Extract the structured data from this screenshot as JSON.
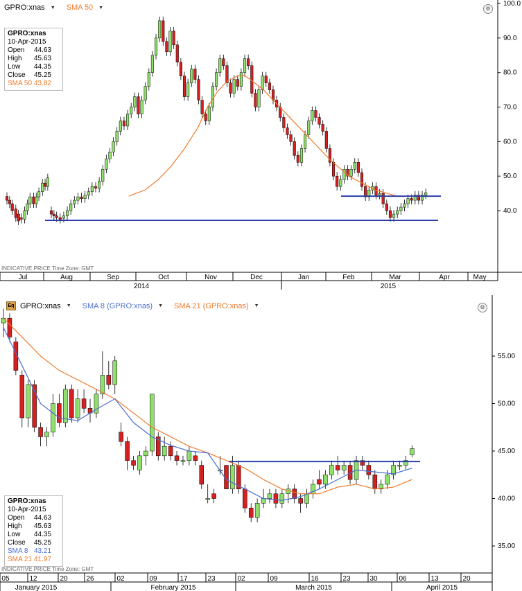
{
  "top": {
    "symbol": "GPRO:xnas",
    "indicator": "SMA 50",
    "info": {
      "title": "GPRO:xnas",
      "date": "10-Apr-2015",
      "rows": [
        {
          "label": "Open",
          "value": "44.63",
          "color": "#000000"
        },
        {
          "label": "High",
          "value": "45.63",
          "color": "#000000"
        },
        {
          "label": "Low",
          "value": "44.35",
          "color": "#000000"
        },
        {
          "label": "Close",
          "value": "45.25",
          "color": "#000000"
        },
        {
          "label": "SMA 50",
          "value": "43.82",
          "color": "#f07a2a"
        }
      ]
    },
    "footer": "INDICATIVE PRICE   Time Zone: GMT",
    "y_ticks": [
      "100.0",
      "90.0",
      "80.0",
      "70.0",
      "60.0",
      "50.0",
      "40.0"
    ],
    "months": [
      "Jul",
      "Aug",
      "Sep",
      "Oct",
      "Nov",
      "Dec",
      "Jan",
      "Feb",
      "Mar",
      "Apr",
      "May"
    ],
    "years": [
      "2014",
      "2015"
    ]
  },
  "bottom": {
    "symbol": "GPRO:xnas",
    "indicators": [
      {
        "label": "SMA 8 (GPRO:xnas)",
        "color": "#4a6ed0"
      },
      {
        "label": "SMA 21 (GPRO:xnas)",
        "color": "#f07a2a"
      }
    ],
    "info": {
      "title": "GPRO:xnas",
      "date": "10-Apr-2015",
      "rows": [
        {
          "label": "Open",
          "value": "44.63",
          "color": "#000000"
        },
        {
          "label": "High",
          "value": "45.63",
          "color": "#000000"
        },
        {
          "label": "Low",
          "value": "44.35",
          "color": "#000000"
        },
        {
          "label": "Close",
          "value": "45.25",
          "color": "#000000"
        },
        {
          "label": "SMA 8",
          "value": "43.21",
          "color": "#4a6ed0"
        },
        {
          "label": "SMA 21",
          "value": "41.97",
          "color": "#f07a2a"
        }
      ]
    },
    "footer": "INDICATIVE PRICE   Time Zone: GMT",
    "y_ticks": [
      "55.00",
      "50.00",
      "45.00",
      "40.00",
      "35.00"
    ],
    "days": [
      "05",
      "12",
      "20",
      "26",
      "02",
      "09",
      "17",
      "23",
      "02",
      "09",
      "16",
      "23",
      "30",
      "06",
      "13",
      "20"
    ],
    "months": [
      "January 2015",
      "February 2015",
      "March 2015",
      "April 2015"
    ]
  },
  "chart_data": [
    {
      "type": "candlestick",
      "title": "GPRO:xnas",
      "indicator": "SMA 50",
      "ylim": [
        32,
        101
      ],
      "x_range": [
        "2014-07",
        "2015-05"
      ],
      "horizontal_lines": [
        44.2,
        37.2
      ],
      "sma50": [
        [
          43,
          44.2
        ],
        [
          48,
          46
        ],
        [
          52,
          49
        ],
        [
          56,
          53
        ],
        [
          60,
          58
        ],
        [
          64,
          64
        ],
        [
          67,
          70
        ],
        [
          70,
          74.5
        ],
        [
          73,
          77.5
        ],
        [
          76,
          79
        ],
        [
          78,
          79.2
        ],
        [
          80,
          78
        ],
        [
          84,
          75
        ],
        [
          88,
          71
        ],
        [
          92,
          67
        ],
        [
          96,
          63
        ],
        [
          100,
          59
        ],
        [
          104,
          55
        ],
        [
          110,
          50
        ],
        [
          118,
          46
        ],
        [
          125,
          44.1
        ],
        [
          132,
          44.2
        ]
      ],
      "candles": [
        [
          2.2,
          44.1,
          43
        ],
        [
          2.5,
          43,
          42
        ],
        [
          2.8,
          42,
          40
        ],
        [
          3.2,
          40.5,
          38
        ],
        [
          3.5,
          39,
          37
        ],
        [
          3.8,
          38,
          37.5
        ],
        [
          4.2,
          37.5,
          40
        ],
        [
          4.5,
          40,
          42
        ],
        [
          4.8,
          42,
          44
        ],
        [
          5.2,
          44,
          42
        ],
        [
          5.5,
          42,
          44
        ],
        [
          5.8,
          44,
          45.5
        ],
        [
          6.2,
          45.5,
          48
        ],
        [
          6.5,
          48,
          47
        ],
        [
          6.8,
          47,
          49.5
        ],
        [
          7.2,
          40,
          39
        ],
        [
          7.5,
          39,
          38.5
        ],
        [
          7.8,
          38.5,
          38
        ],
        [
          8.2,
          38,
          37.5
        ],
        [
          8.6,
          37.8,
          38.5
        ],
        [
          9,
          38.5,
          40
        ],
        [
          9.4,
          40,
          42
        ],
        [
          9.8,
          42,
          43
        ],
        [
          10.2,
          43,
          44
        ],
        [
          10.6,
          44,
          43.5
        ],
        [
          11,
          43.5,
          44.5
        ],
        [
          11.4,
          44.5,
          45.5
        ],
        [
          11.8,
          45.5,
          47
        ],
        [
          12.2,
          47,
          46.5
        ],
        [
          12.6,
          46.5,
          48.5
        ],
        [
          13,
          48.5,
          52
        ],
        [
          13.4,
          52,
          55
        ],
        [
          13.8,
          55,
          57
        ],
        [
          14.2,
          57,
          60
        ],
        [
          14.6,
          60,
          63
        ],
        [
          15,
          63,
          66
        ],
        [
          15.4,
          66,
          64.5
        ],
        [
          15.8,
          64.5,
          68
        ],
        [
          16.2,
          68,
          70
        ],
        [
          16.6,
          70,
          73
        ],
        [
          17,
          73,
          68
        ],
        [
          17.4,
          68,
          72
        ],
        [
          17.8,
          72,
          76
        ],
        [
          18.2,
          76,
          80
        ],
        [
          18.6,
          80,
          85
        ],
        [
          19,
          85,
          90
        ],
        [
          19.4,
          90,
          95
        ],
        [
          19.8,
          95,
          89
        ],
        [
          20.2,
          89,
          86
        ],
        [
          20.6,
          86,
          92
        ],
        [
          21,
          92,
          88
        ],
        [
          21.4,
          88,
          83
        ],
        [
          21.8,
          83,
          79
        ],
        [
          22.2,
          79,
          73
        ],
        [
          22.6,
          73,
          77
        ],
        [
          23,
          77,
          81
        ],
        [
          23.4,
          81,
          78
        ],
        [
          23.8,
          78,
          72
        ],
        [
          24.2,
          72,
          68
        ],
        [
          24.6,
          68,
          66
        ],
        [
          25,
          66,
          70
        ],
        [
          25.4,
          70,
          76
        ],
        [
          25.8,
          76,
          80
        ],
        [
          26.2,
          80,
          84
        ],
        [
          26.6,
          84,
          82
        ],
        [
          27,
          82,
          77
        ],
        [
          27.4,
          77,
          74
        ],
        [
          27.8,
          74,
          78
        ],
        [
          28.2,
          78,
          76
        ],
        [
          28.6,
          76,
          80
        ],
        [
          29,
          80,
          84
        ],
        [
          29.4,
          84,
          82
        ],
        [
          29.8,
          82,
          74
        ],
        [
          30.2,
          74,
          70
        ],
        [
          30.6,
          70,
          75
        ],
        [
          31,
          75,
          79
        ],
        [
          31.4,
          79,
          77
        ],
        [
          31.8,
          77,
          75
        ],
        [
          32.2,
          75,
          72
        ],
        [
          32.6,
          72,
          70
        ],
        [
          33,
          70,
          67
        ],
        [
          33.4,
          67,
          64
        ],
        [
          33.8,
          64,
          62
        ],
        [
          34.2,
          62,
          60
        ],
        [
          34.6,
          60,
          56
        ],
        [
          35,
          56,
          54
        ],
        [
          35.4,
          54,
          58
        ],
        [
          35.8,
          58,
          62
        ],
        [
          36.2,
          62,
          66
        ],
        [
          36.6,
          66,
          69
        ],
        [
          37,
          69,
          67
        ],
        [
          37.4,
          67,
          65
        ],
        [
          37.8,
          65,
          63
        ],
        [
          38.2,
          63,
          58
        ],
        [
          38.6,
          58,
          54
        ],
        [
          39,
          54,
          50
        ],
        [
          39.4,
          50,
          47
        ],
        [
          39.8,
          47,
          49
        ],
        [
          40.2,
          49,
          52
        ],
        [
          40.6,
          52,
          50
        ],
        [
          41,
          50,
          52
        ],
        [
          41.4,
          52,
          54
        ],
        [
          41.8,
          54,
          51
        ],
        [
          42.2,
          51,
          47
        ],
        [
          42.6,
          47,
          44
        ],
        [
          43,
          44,
          46
        ],
        [
          43.4,
          46,
          47
        ],
        [
          43.8,
          47,
          44.5
        ],
        [
          44.2,
          44.5,
          45
        ],
        [
          44.6,
          45,
          42
        ],
        [
          45,
          42,
          40
        ],
        [
          45.4,
          40,
          38
        ],
        [
          45.8,
          38,
          39
        ],
        [
          46.2,
          39,
          40
        ],
        [
          46.6,
          40,
          41
        ],
        [
          47,
          41,
          42
        ],
        [
          47.4,
          42,
          43.5
        ],
        [
          47.8,
          43.5,
          43
        ],
        [
          48.2,
          43,
          44.5
        ],
        [
          48.6,
          44.5,
          43
        ],
        [
          49,
          43,
          44.5
        ],
        [
          49.4,
          44.5,
          45.2
        ]
      ]
    },
    {
      "type": "candlestick",
      "title": "GPRO:xnas",
      "indicators": [
        "SMA 8 (GPRO:xnas)",
        "SMA 21 (GPRO:xnas)"
      ],
      "ylim": [
        34,
        59.5
      ],
      "horizontal_line": 43.9,
      "candles_ohlc": [
        [
          58.5,
          60,
          57,
          59
        ],
        [
          59,
          59.5,
          56.5,
          57
        ],
        [
          56.5,
          57,
          53,
          53.5
        ],
        [
          53,
          53.5,
          47.5,
          48.5
        ],
        [
          48.5,
          52.5,
          47.5,
          52
        ],
        [
          52,
          52.5,
          47,
          47.5
        ],
        [
          47.5,
          48,
          45.5,
          46.5
        ],
        [
          46.5,
          47.5,
          45.5,
          47
        ],
        [
          47,
          51,
          46.5,
          50
        ],
        [
          50,
          51,
          47.5,
          48
        ],
        [
          48,
          52,
          47.5,
          51.5
        ],
        [
          51.5,
          52,
          48,
          48.5
        ],
        [
          48.5,
          51.5,
          48,
          50.5
        ],
        [
          50.5,
          51.5,
          49,
          49.5
        ],
        [
          49.5,
          50.5,
          48,
          49
        ],
        [
          49,
          51.5,
          48.5,
          51
        ],
        [
          51,
          55.5,
          50.5,
          53
        ],
        [
          53,
          54.5,
          51.5,
          52
        ],
        [
          52,
          55,
          51,
          54.5
        ],
        [
          47,
          48,
          45.5,
          46
        ],
        [
          46,
          46.5,
          43,
          44
        ],
        [
          44,
          44.5,
          43,
          43.5
        ],
        [
          43,
          45,
          42.5,
          44.5
        ],
        [
          44.5,
          45.5,
          43.5,
          45
        ],
        [
          45,
          51,
          44.5,
          51
        ],
        [
          46.5,
          47,
          44,
          44.5
        ],
        [
          44.5,
          46.5,
          44,
          45.5
        ],
        [
          45.5,
          46,
          44,
          44.5
        ],
        [
          44.5,
          45,
          43.5,
          44
        ],
        [
          44,
          44.5,
          43.5,
          44
        ],
        [
          44,
          45.5,
          43.5,
          45
        ],
        [
          44.5,
          45,
          43.5,
          44
        ],
        [
          43.5,
          44,
          41,
          41.5
        ],
        [
          40,
          41.5,
          39.5,
          40
        ],
        [
          40.5,
          41,
          39.5,
          40
        ],
        [
          43,
          44.5,
          42.5,
          43
        ],
        [
          43.5,
          43.5,
          41,
          41
        ],
        [
          41,
          44.5,
          40.5,
          43.5
        ],
        [
          43.5,
          44,
          40.5,
          41
        ],
        [
          41,
          41.5,
          38.5,
          39
        ],
        [
          39,
          39.5,
          37.5,
          38
        ],
        [
          38,
          40,
          37.5,
          39.5
        ],
        [
          39.5,
          41,
          39,
          40
        ],
        [
          40,
          41,
          39.5,
          40.5
        ],
        [
          40.5,
          41,
          39,
          39.5
        ],
        [
          39.5,
          41,
          39,
          40.5
        ],
        [
          40.5,
          41.5,
          39.5,
          41
        ],
        [
          41,
          41.5,
          39.5,
          40
        ],
        [
          40,
          40.5,
          38.5,
          39.5
        ],
        [
          39.5,
          41,
          39,
          40.5
        ],
        [
          40.5,
          42,
          40,
          41.5
        ],
        [
          42,
          43,
          41,
          41.5
        ],
        [
          41.5,
          43,
          41,
          42.5
        ],
        [
          42.5,
          44,
          42,
          43.5
        ],
        [
          43.5,
          44.5,
          42.5,
          43
        ],
        [
          43,
          44,
          42.5,
          43.5
        ],
        [
          43.5,
          44,
          41.5,
          42
        ],
        [
          42,
          44.5,
          41.5,
          44
        ],
        [
          44,
          44.5,
          43,
          43.5
        ],
        [
          43.5,
          44,
          42,
          42.5
        ],
        [
          42.5,
          43,
          40.5,
          41
        ],
        [
          41,
          42,
          40.5,
          41.5
        ],
        [
          41.5,
          43,
          41,
          42.5
        ],
        [
          42.5,
          44,
          42,
          43.5
        ],
        [
          43.5,
          44,
          43,
          43.5
        ],
        [
          43.5,
          44.5,
          43,
          44
        ],
        [
          44.6,
          45.6,
          44.35,
          45.25
        ]
      ],
      "sma8": [
        [
          0,
          58
        ],
        [
          3,
          54
        ],
        [
          6,
          50
        ],
        [
          9,
          48.5
        ],
        [
          12,
          48.2
        ],
        [
          15,
          49.4
        ],
        [
          18,
          50.5
        ],
        [
          21,
          48
        ],
        [
          24,
          46.5
        ],
        [
          27,
          45.6
        ],
        [
          30,
          45
        ],
        [
          33,
          44.8
        ],
        [
          36,
          42
        ],
        [
          39,
          41
        ],
        [
          42,
          40
        ],
        [
          45,
          39.8
        ],
        [
          48,
          40.2
        ],
        [
          51,
          41
        ],
        [
          54,
          42
        ],
        [
          57,
          43
        ],
        [
          60,
          42.8
        ],
        [
          63,
          42.6
        ],
        [
          66,
          43.2
        ]
      ],
      "sma21": [
        [
          0,
          59
        ],
        [
          3,
          57
        ],
        [
          6,
          55
        ],
        [
          9,
          53.5
        ],
        [
          12,
          52.5
        ],
        [
          15,
          51.5
        ],
        [
          18,
          50.5
        ],
        [
          21,
          49
        ],
        [
          24,
          47.5
        ],
        [
          27,
          46.5
        ],
        [
          30,
          45.5
        ],
        [
          33,
          44.8
        ],
        [
          36,
          44
        ],
        [
          39,
          43.2
        ],
        [
          42,
          42
        ],
        [
          45,
          41
        ],
        [
          48,
          40.5
        ],
        [
          51,
          40.5
        ],
        [
          54,
          41.2
        ],
        [
          57,
          41.5
        ],
        [
          60,
          41
        ],
        [
          63,
          41.2
        ],
        [
          66,
          42
        ]
      ]
    }
  ]
}
